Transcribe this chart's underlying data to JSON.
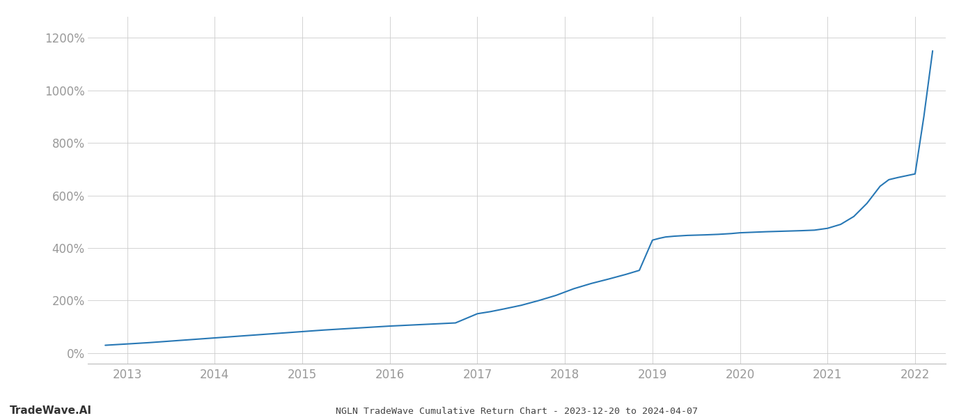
{
  "title": "NGLN TradeWave Cumulative Return Chart - 2023-12-20 to 2024-04-07",
  "watermark": "TradeWave.AI",
  "line_color": "#2878b5",
  "background_color": "#ffffff",
  "grid_color": "#cccccc",
  "x_years": [
    2013,
    2014,
    2015,
    2016,
    2017,
    2018,
    2019,
    2020,
    2021,
    2022
  ],
  "y_ticks": [
    0,
    200,
    400,
    600,
    800,
    1000,
    1200
  ],
  "ylim": [
    -40,
    1280
  ],
  "xlim_left": 2012.55,
  "xlim_right": 2022.35,
  "curve_x": [
    2012.75,
    2013.0,
    2013.25,
    2013.5,
    2013.75,
    2014.0,
    2014.25,
    2014.5,
    2014.75,
    2015.0,
    2015.25,
    2015.5,
    2015.75,
    2016.0,
    2016.25,
    2016.5,
    2016.75,
    2017.0,
    2017.15,
    2017.3,
    2017.5,
    2017.7,
    2017.9,
    2018.1,
    2018.3,
    2018.5,
    2018.7,
    2018.85,
    2019.0,
    2019.08,
    2019.15,
    2019.25,
    2019.4,
    2019.6,
    2019.75,
    2019.9,
    2020.0,
    2020.15,
    2020.3,
    2020.5,
    2020.7,
    2020.85,
    2021.0,
    2021.15,
    2021.3,
    2021.45,
    2021.6,
    2021.7,
    2021.8,
    2021.9,
    2022.0,
    2022.1,
    2022.2
  ],
  "curve_y": [
    30,
    35,
    40,
    46,
    52,
    58,
    64,
    70,
    76,
    82,
    88,
    93,
    98,
    103,
    107,
    111,
    115,
    150,
    158,
    168,
    182,
    200,
    220,
    245,
    265,
    282,
    300,
    315,
    430,
    437,
    442,
    445,
    448,
    450,
    452,
    455,
    458,
    460,
    462,
    464,
    466,
    468,
    475,
    490,
    520,
    570,
    635,
    660,
    668,
    675,
    682,
    900,
    1150
  ]
}
